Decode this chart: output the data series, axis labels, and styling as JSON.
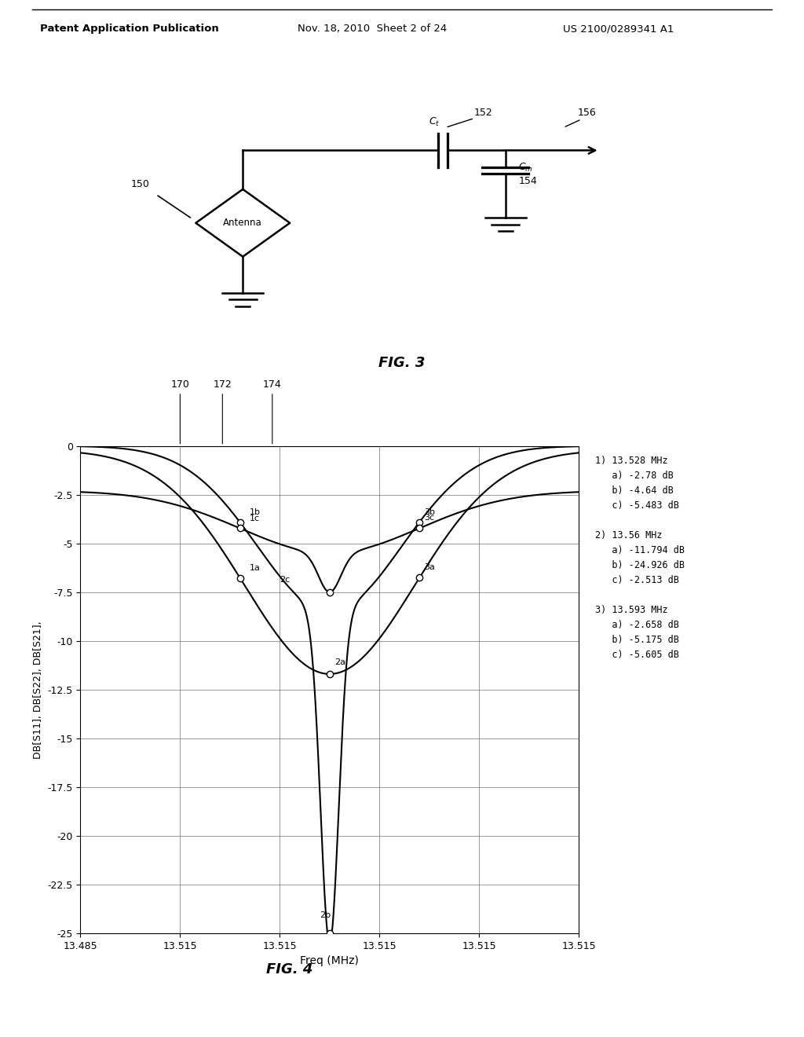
{
  "header_left": "Patent Application Publication",
  "header_mid": "Nov. 18, 2010  Sheet 2 of 24",
  "header_right": "US 2100/0289341 A1",
  "fig3_label": "FIG. 3",
  "fig4_label": "FIG. 4",
  "fig4": {
    "xlabel": "Freq (MHz)",
    "ylabel": "DB[S11], DB[S22], DB[S21],",
    "ylim": [
      -25,
      0
    ],
    "yticks": [
      0,
      -2.5,
      -5,
      -7.5,
      -10,
      -12.5,
      -15,
      -17.5,
      -20,
      -22.5,
      -25
    ],
    "xtick_labels": [
      "13.485",
      "13.515",
      "13.515",
      "13.515",
      "13.515",
      "13.515"
    ],
    "ref_170": "170",
    "ref_172": "172",
    "ref_174": "174",
    "annotation_text": "1) 13.528 MHz\n   a) -2.78 dB\n   b) -4.64 dB\n   c) -5.483 dB\n\n2) 13.56 MHz\n   a) -11.794 dB\n   b) -24.926 dB\n   c) -2.513 dB\n\n3) 13.593 MHz\n   a) -2.658 dB\n   b) -5.175 dB\n   c) -5.605 dB"
  }
}
